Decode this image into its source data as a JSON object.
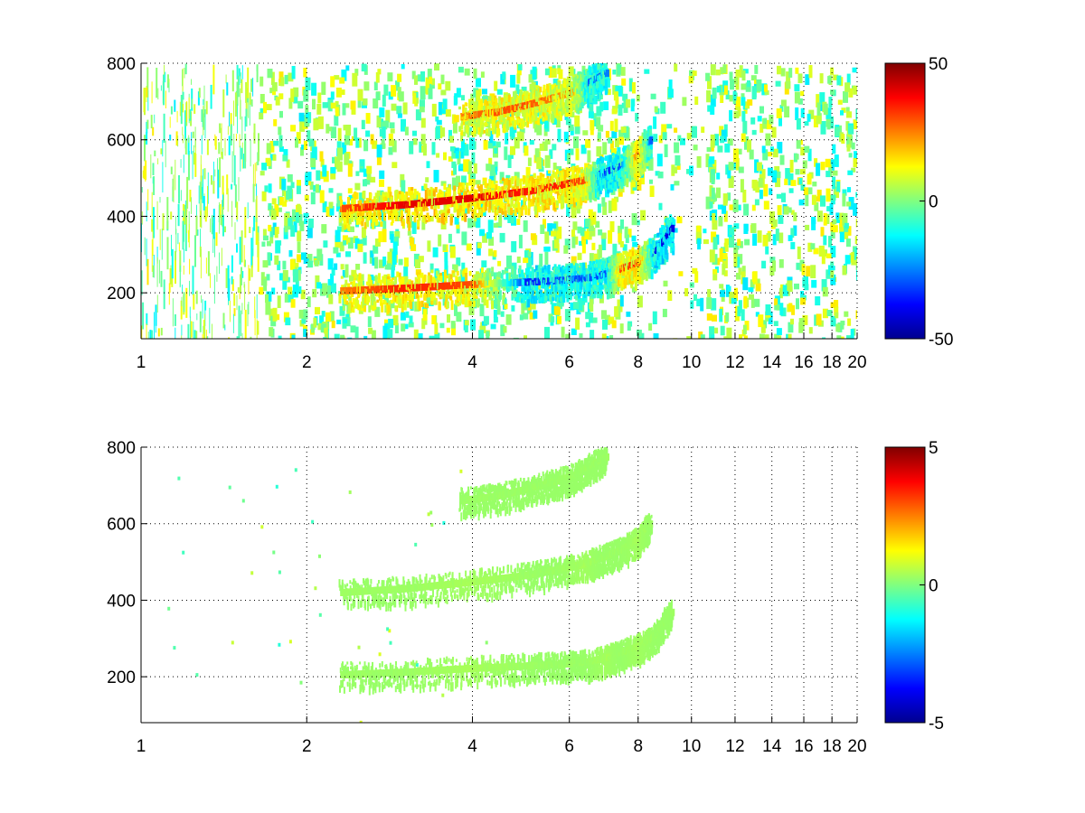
{
  "chart_data": [
    {
      "type": "heatmap",
      "panel": "top",
      "title": "",
      "xlabel": "",
      "ylabel": "",
      "x_scale": "log",
      "xlim": [
        1,
        20
      ],
      "ylim": [
        80,
        800
      ],
      "x_ticks": [
        1,
        2,
        4,
        6,
        8,
        10,
        12,
        14,
        16,
        18,
        20
      ],
      "y_ticks": [
        200,
        400,
        600,
        800
      ],
      "grid": true,
      "colormap": "jet",
      "colorbar": {
        "min": -50,
        "max": 50,
        "ticks": [
          50,
          0,
          -50
        ]
      },
      "empty_cells": "white",
      "tracks": [
        {
          "x": [
            2.3,
            3.0,
            4.0,
            5.0,
            5.7,
            6.4,
            7.0,
            7.4,
            8.0,
            8.6,
            9.2
          ],
          "y": [
            205,
            212,
            222,
            228,
            232,
            238,
            250,
            262,
            280,
            310,
            370
          ],
          "values": [
            25,
            35,
            30,
            -35,
            -30,
            -30,
            -30,
            30,
            35,
            -40,
            -40
          ]
        },
        {
          "x": [
            2.3,
            3.0,
            4.0,
            5.0,
            5.7,
            6.4,
            6.8,
            7.4,
            8.0,
            8.4
          ],
          "y": [
            420,
            430,
            448,
            465,
            480,
            495,
            510,
            530,
            560,
            600
          ],
          "values": [
            30,
            40,
            40,
            35,
            35,
            30,
            -35,
            -30,
            35,
            -30
          ]
        },
        {
          "x": [
            3.8,
            4.4,
            5.0,
            5.6,
            6.1,
            6.5,
            7.0
          ],
          "y": [
            660,
            672,
            690,
            710,
            725,
            750,
            775
          ],
          "values": [
            25,
            30,
            30,
            25,
            20,
            -30,
            -25
          ]
        }
      ],
      "background": "scattered values between -15 and 15, mostly near 0"
    },
    {
      "type": "heatmap",
      "panel": "bottom",
      "title": "",
      "xlabel": "",
      "ylabel": "",
      "x_scale": "log",
      "xlim": [
        1,
        20
      ],
      "ylim": [
        80,
        800
      ],
      "x_ticks": [
        1,
        2,
        4,
        6,
        8,
        10,
        12,
        14,
        16,
        18,
        20
      ],
      "y_ticks": [
        200,
        400,
        600,
        800
      ],
      "grid": true,
      "colormap": "jet",
      "colorbar": {
        "min": -5,
        "max": 5,
        "ticks": [
          5,
          0,
          -5
        ]
      },
      "empty_cells": "white",
      "tracks": [
        {
          "x": [
            2.3,
            3.0,
            4.0,
            5.0,
            5.7,
            6.4,
            7.0,
            7.4,
            8.0,
            8.6,
            9.2
          ],
          "y": [
            205,
            212,
            222,
            228,
            232,
            238,
            250,
            262,
            280,
            310,
            370
          ],
          "values": [
            0.3,
            0.3,
            0.4,
            0.3,
            0.3,
            0.3,
            0.4,
            0.3,
            0.4,
            0.3,
            0.3
          ]
        },
        {
          "x": [
            2.3,
            3.0,
            4.0,
            5.0,
            5.7,
            6.4,
            6.8,
            7.4,
            8.0,
            8.4
          ],
          "y": [
            420,
            430,
            448,
            465,
            480,
            495,
            510,
            530,
            560,
            600
          ],
          "values": [
            0.3,
            0.3,
            0.4,
            0.3,
            0.3,
            0.4,
            0.3,
            0.3,
            0.4,
            0.3
          ]
        },
        {
          "x": [
            3.8,
            4.4,
            5.0,
            5.6,
            6.1,
            6.5,
            7.0
          ],
          "y": [
            660,
            672,
            690,
            710,
            725,
            750,
            775
          ],
          "values": [
            0.3,
            0.3,
            0.3,
            0.3,
            0.3,
            0.3,
            0.3
          ]
        }
      ],
      "background": "nearly empty; isolated cells near 0"
    }
  ]
}
